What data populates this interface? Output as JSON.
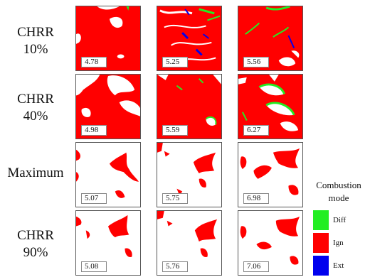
{
  "rows": [
    {
      "label_line1": "CHRR",
      "label_line2": "10%",
      "values": [
        "4.78",
        "5.25",
        "5.56"
      ]
    },
    {
      "label_line1": "CHRR",
      "label_line2": "40%",
      "values": [
        "4.98",
        "5.59",
        "6.27"
      ]
    },
    {
      "label_line1": "Maximum",
      "label_line2": "",
      "values": [
        "5.07",
        "5.75",
        "6.98"
      ]
    },
    {
      "label_line1": "CHRR",
      "label_line2": "90%",
      "values": [
        "5.08",
        "5.76",
        "7.06"
      ]
    }
  ],
  "legend": {
    "title_line1": "Combustion",
    "title_line2": "mode",
    "items": [
      {
        "label": "Diff",
        "color": "#22ee22"
      },
      {
        "label": "Ign",
        "color": "#ff0000"
      },
      {
        "label": "Ext",
        "color": "#0000ee"
      }
    ]
  },
  "colors": {
    "ign": "#ff0000",
    "diff": "#22ee22",
    "ext": "#0000ee",
    "unburnt": "#ffffff"
  }
}
